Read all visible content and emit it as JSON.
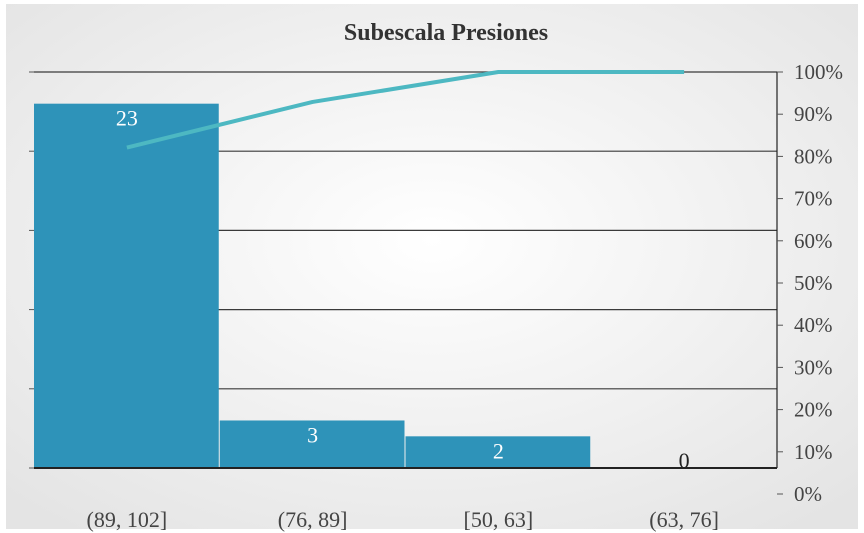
{
  "chart_data": {
    "type": "bar",
    "title": "Subescala Presiones",
    "categories": [
      "(89, 102]",
      "(76, 89]",
      "[50, 63]",
      "(63, 76]"
    ],
    "series": [
      {
        "values": [
          23,
          3,
          2,
          0
        ]
      }
    ],
    "cumulative_percent": [
      82.1,
      92.9,
      100,
      100
    ],
    "y2_ticks": [
      "0%",
      "10%",
      "20%",
      "30%",
      "40%",
      "50%",
      "60%",
      "70%",
      "80%",
      "90%",
      "100%"
    ],
    "y2lim": [
      0,
      100
    ],
    "ylim": [
      0,
      25
    ],
    "grid": true,
    "colors": {
      "bar": "#2e93b9",
      "line": "#4db8c2",
      "label_on_bar": "#ffffff",
      "label_outside": "#222222"
    }
  }
}
